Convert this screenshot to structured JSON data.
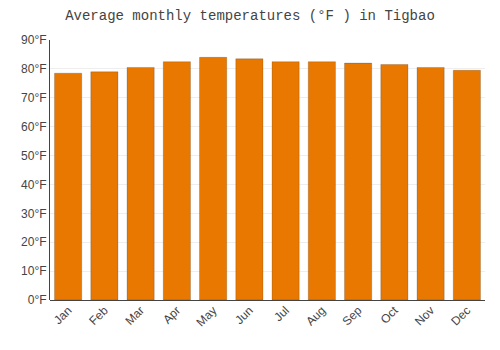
{
  "chart_data": {
    "type": "bar",
    "title": "Average monthly temperatures (°F ) in Tigbao",
    "categories": [
      "Jan",
      "Feb",
      "Mar",
      "Apr",
      "May",
      "Jun",
      "Jul",
      "Aug",
      "Sep",
      "Oct",
      "Nov",
      "Dec"
    ],
    "values": [
      78.5,
      79.0,
      80.5,
      82.5,
      84.0,
      83.5,
      82.5,
      82.5,
      82.0,
      81.5,
      80.5,
      79.5
    ],
    "color": "#E87800",
    "ylim": [
      0,
      90
    ],
    "yticks": [
      {
        "value": 0,
        "label": "0°F"
      },
      {
        "value": 10,
        "label": "10°F"
      },
      {
        "value": 20,
        "label": "20°F"
      },
      {
        "value": 30,
        "label": "30°F"
      },
      {
        "value": 40,
        "label": "40°F"
      },
      {
        "value": 50,
        "label": "50°F"
      },
      {
        "value": 60,
        "label": "60°F"
      },
      {
        "value": 70,
        "label": "70°F"
      },
      {
        "value": 80,
        "label": "80°F"
      },
      {
        "value": 90,
        "label": "90°F"
      }
    ],
    "grid": true
  }
}
